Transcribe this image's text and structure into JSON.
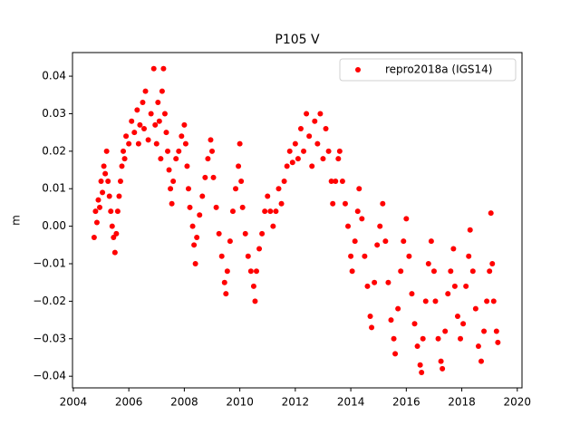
{
  "chart_data": {
    "type": "scatter",
    "title": "P105 V",
    "y_label": "m",
    "xlim": [
      2003.97,
      2020.17
    ],
    "ylim": [
      -0.0431,
      0.0463
    ],
    "xticks": [
      2004,
      2006,
      2008,
      2010,
      2012,
      2014,
      2016,
      2018,
      2020
    ],
    "yticks": [
      {
        "value": -0.04,
        "label": "−0.04"
      },
      {
        "value": -0.03,
        "label": "−0.03"
      },
      {
        "value": -0.02,
        "label": "−0.02"
      },
      {
        "value": -0.01,
        "label": "−0.01"
      },
      {
        "value": 0,
        "label": "0.00"
      },
      {
        "value": 0.01,
        "label": "0.01"
      },
      {
        "value": 0.02,
        "label": "0.02"
      },
      {
        "value": 0.03,
        "label": "0.03"
      },
      {
        "value": 0.04,
        "label": "0.04"
      }
    ],
    "grid": false,
    "legend": "upper right",
    "series": [
      {
        "name": "repro2018a (IGS14)",
        "color": "#ff0000",
        "x": [
          2004.75,
          2004.8,
          2004.85,
          2004.9,
          2004.95,
          2005.0,
          2005.05,
          2005.1,
          2005.15,
          2005.2,
          2005.25,
          2005.3,
          2005.35,
          2005.4,
          2005.45,
          2005.5,
          2005.55,
          2005.6,
          2005.65,
          2005.7,
          2005.75,
          2005.8,
          2005.85,
          2005.9,
          2006.0,
          2006.1,
          2006.2,
          2006.3,
          2006.35,
          2006.4,
          2006.5,
          2006.55,
          2006.6,
          2006.7,
          2006.8,
          2006.9,
          2006.95,
          2007.0,
          2007.05,
          2007.1,
          2007.15,
          2007.2,
          2007.25,
          2007.3,
          2007.35,
          2007.4,
          2007.45,
          2007.5,
          2007.55,
          2007.6,
          2007.7,
          2007.8,
          2007.9,
          2008.0,
          2008.05,
          2008.1,
          2008.15,
          2008.2,
          2008.3,
          2008.35,
          2008.4,
          2008.45,
          2008.55,
          2008.65,
          2008.75,
          2008.85,
          2008.95,
          2009.0,
          2009.05,
          2009.15,
          2009.25,
          2009.35,
          2009.45,
          2009.5,
          2009.55,
          2009.65,
          2009.75,
          2009.85,
          2009.95,
          2010.0,
          2010.05,
          2010.1,
          2010.2,
          2010.3,
          2010.4,
          2010.5,
          2010.55,
          2010.6,
          2010.7,
          2010.8,
          2010.9,
          2011.0,
          2011.1,
          2011.2,
          2011.3,
          2011.4,
          2011.5,
          2011.6,
          2011.7,
          2011.8,
          2011.9,
          2012.0,
          2012.1,
          2012.2,
          2012.3,
          2012.4,
          2012.5,
          2012.6,
          2012.7,
          2012.8,
          2012.9,
          2013.0,
          2013.1,
          2013.2,
          2013.3,
          2013.35,
          2013.45,
          2013.55,
          2013.6,
          2013.7,
          2013.8,
          2013.9,
          2014.0,
          2014.05,
          2014.15,
          2014.25,
          2014.3,
          2014.4,
          2014.5,
          2014.6,
          2014.7,
          2014.75,
          2014.85,
          2014.95,
          2015.05,
          2015.15,
          2015.25,
          2015.35,
          2015.45,
          2015.55,
          2015.6,
          2015.7,
          2015.8,
          2015.9,
          2016.0,
          2016.1,
          2016.2,
          2016.3,
          2016.4,
          2016.5,
          2016.55,
          2016.6,
          2016.7,
          2016.8,
          2016.9,
          2017.0,
          2017.05,
          2017.15,
          2017.25,
          2017.3,
          2017.4,
          2017.5,
          2017.6,
          2017.7,
          2017.75,
          2017.85,
          2017.95,
          2018.05,
          2018.15,
          2018.25,
          2018.3,
          2018.4,
          2018.5,
          2018.6,
          2018.7,
          2018.8,
          2018.9,
          2019.0,
          2019.05,
          2019.1,
          2019.15,
          2019.25,
          2019.3
        ],
        "values": [
          -0.003,
          0.004,
          0.001,
          0.007,
          0.005,
          0.012,
          0.009,
          0.016,
          0.014,
          0.02,
          0.012,
          0.008,
          0.004,
          0.0,
          -0.003,
          -0.007,
          -0.002,
          0.004,
          0.008,
          0.012,
          0.016,
          0.02,
          0.018,
          0.024,
          0.022,
          0.028,
          0.025,
          0.031,
          0.022,
          0.027,
          0.033,
          0.026,
          0.036,
          0.023,
          0.03,
          0.042,
          0.027,
          0.022,
          0.033,
          0.028,
          0.018,
          0.036,
          0.042,
          0.03,
          0.025,
          0.02,
          0.015,
          0.01,
          0.006,
          0.012,
          0.018,
          0.02,
          0.024,
          0.027,
          0.022,
          0.016,
          0.01,
          0.005,
          0.0,
          -0.005,
          -0.01,
          -0.003,
          0.003,
          0.008,
          0.013,
          0.018,
          0.023,
          0.02,
          0.013,
          0.005,
          -0.002,
          -0.008,
          -0.015,
          -0.018,
          -0.012,
          -0.004,
          0.004,
          0.01,
          0.016,
          0.022,
          0.012,
          0.005,
          -0.002,
          -0.008,
          -0.012,
          -0.016,
          -0.02,
          -0.012,
          -0.006,
          -0.002,
          0.004,
          0.008,
          0.004,
          0.0,
          0.004,
          0.01,
          0.006,
          0.012,
          0.016,
          0.02,
          0.017,
          0.022,
          0.018,
          0.026,
          0.02,
          0.03,
          0.024,
          0.016,
          0.028,
          0.022,
          0.03,
          0.018,
          0.026,
          0.02,
          0.012,
          0.006,
          0.012,
          0.018,
          0.02,
          0.012,
          0.006,
          0.0,
          -0.008,
          -0.012,
          -0.004,
          0.004,
          0.01,
          0.002,
          -0.008,
          -0.016,
          -0.024,
          -0.027,
          -0.015,
          -0.005,
          0.0,
          0.006,
          -0.004,
          -0.015,
          -0.025,
          -0.03,
          -0.034,
          -0.022,
          -0.012,
          -0.004,
          0.002,
          -0.008,
          -0.018,
          -0.026,
          -0.032,
          -0.037,
          -0.039,
          -0.03,
          -0.02,
          -0.01,
          -0.004,
          -0.012,
          -0.02,
          -0.03,
          -0.036,
          -0.038,
          -0.028,
          -0.018,
          -0.012,
          -0.006,
          -0.016,
          -0.024,
          -0.03,
          -0.026,
          -0.016,
          -0.008,
          -0.001,
          -0.012,
          -0.022,
          -0.032,
          -0.036,
          -0.028,
          -0.02,
          -0.012,
          0.0035,
          -0.01,
          -0.02,
          -0.028,
          -0.031
        ]
      }
    ]
  }
}
